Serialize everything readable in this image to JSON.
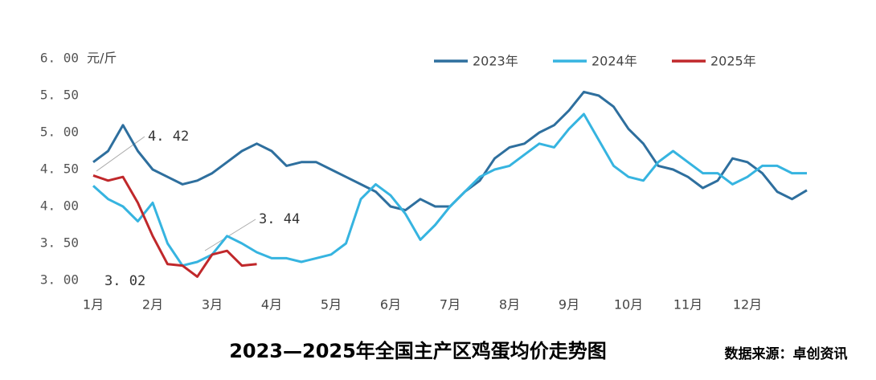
{
  "chart_data": {
    "type": "line",
    "title": "2023—2025年全国主产区鸡蛋均价走势图",
    "source": "数据来源：卓创资讯",
    "y_label": "元/斤",
    "legend_position": "top-right",
    "categories": [
      "1月",
      null,
      null,
      null,
      "2月",
      null,
      null,
      null,
      "3月",
      null,
      null,
      null,
      "4月",
      null,
      null,
      null,
      "5月",
      null,
      null,
      null,
      "6月",
      null,
      null,
      null,
      "7月",
      null,
      null,
      null,
      "8月",
      null,
      null,
      null,
      "9月",
      null,
      null,
      null,
      "10月",
      null,
      null,
      null,
      "11月",
      null,
      null,
      null,
      "12月",
      null,
      null,
      null,
      null
    ],
    "ylim": [
      3,
      6
    ],
    "yticks": [
      {
        "value": 3,
        "label": "3. 00"
      },
      {
        "value": 3.5,
        "label": "3. 50"
      },
      {
        "value": 4,
        "label": "4. 00"
      },
      {
        "value": 4.5,
        "label": "4. 50"
      },
      {
        "value": 5,
        "label": "5. 00"
      },
      {
        "value": 5.5,
        "label": "5. 50"
      },
      {
        "value": 6,
        "label": "6. 00"
      }
    ],
    "series": [
      {
        "name": "2023年",
        "color": "#2e6f9e",
        "values": [
          4.6,
          4.75,
          5.1,
          4.75,
          4.5,
          4.4,
          4.3,
          4.35,
          4.45,
          4.6,
          4.75,
          4.85,
          4.75,
          4.55,
          4.6,
          4.6,
          4.5,
          4.4,
          4.3,
          4.2,
          4.0,
          3.95,
          4.1,
          4.0,
          4.0,
          4.2,
          4.35,
          4.65,
          4.8,
          4.85,
          5.0,
          5.1,
          5.3,
          5.55,
          5.5,
          5.35,
          5.05,
          4.85,
          4.55,
          4.5,
          4.4,
          4.25,
          4.35,
          4.65,
          4.6,
          4.45,
          4.2,
          4.1,
          4.22
        ]
      },
      {
        "name": "2024年",
        "color": "#36b4e0",
        "values": [
          4.28,
          4.1,
          4.0,
          3.8,
          4.05,
          3.5,
          3.2,
          3.25,
          3.35,
          3.6,
          3.5,
          3.38,
          3.3,
          3.3,
          3.25,
          3.3,
          3.35,
          3.5,
          4.1,
          4.3,
          4.15,
          3.9,
          3.55,
          3.75,
          4.0,
          4.2,
          4.4,
          4.5,
          4.55,
          4.7,
          4.85,
          4.8,
          5.05,
          5.25,
          4.9,
          4.55,
          4.4,
          4.35,
          4.6,
          4.75,
          4.6,
          4.45,
          4.45,
          4.3,
          4.4,
          4.55,
          4.55,
          4.45,
          4.45
        ]
      },
      {
        "name": "2025年",
        "color": "#c0282b",
        "values": [
          4.42,
          4.35,
          4.4,
          4.05,
          3.6,
          3.22,
          3.2,
          3.05,
          3.35,
          3.4,
          3.2,
          3.22,
          null,
          null,
          null,
          null,
          null,
          null,
          null,
          null,
          null,
          null,
          null,
          null,
          null,
          null,
          null,
          null,
          null,
          null,
          null,
          null,
          null,
          null,
          null,
          null,
          null,
          null,
          null,
          null,
          null,
          null,
          null,
          null,
          null,
          null,
          null,
          null,
          null
        ]
      }
    ],
    "annotations": [
      "4. 42",
      "3. 44",
      "3. 02"
    ]
  }
}
